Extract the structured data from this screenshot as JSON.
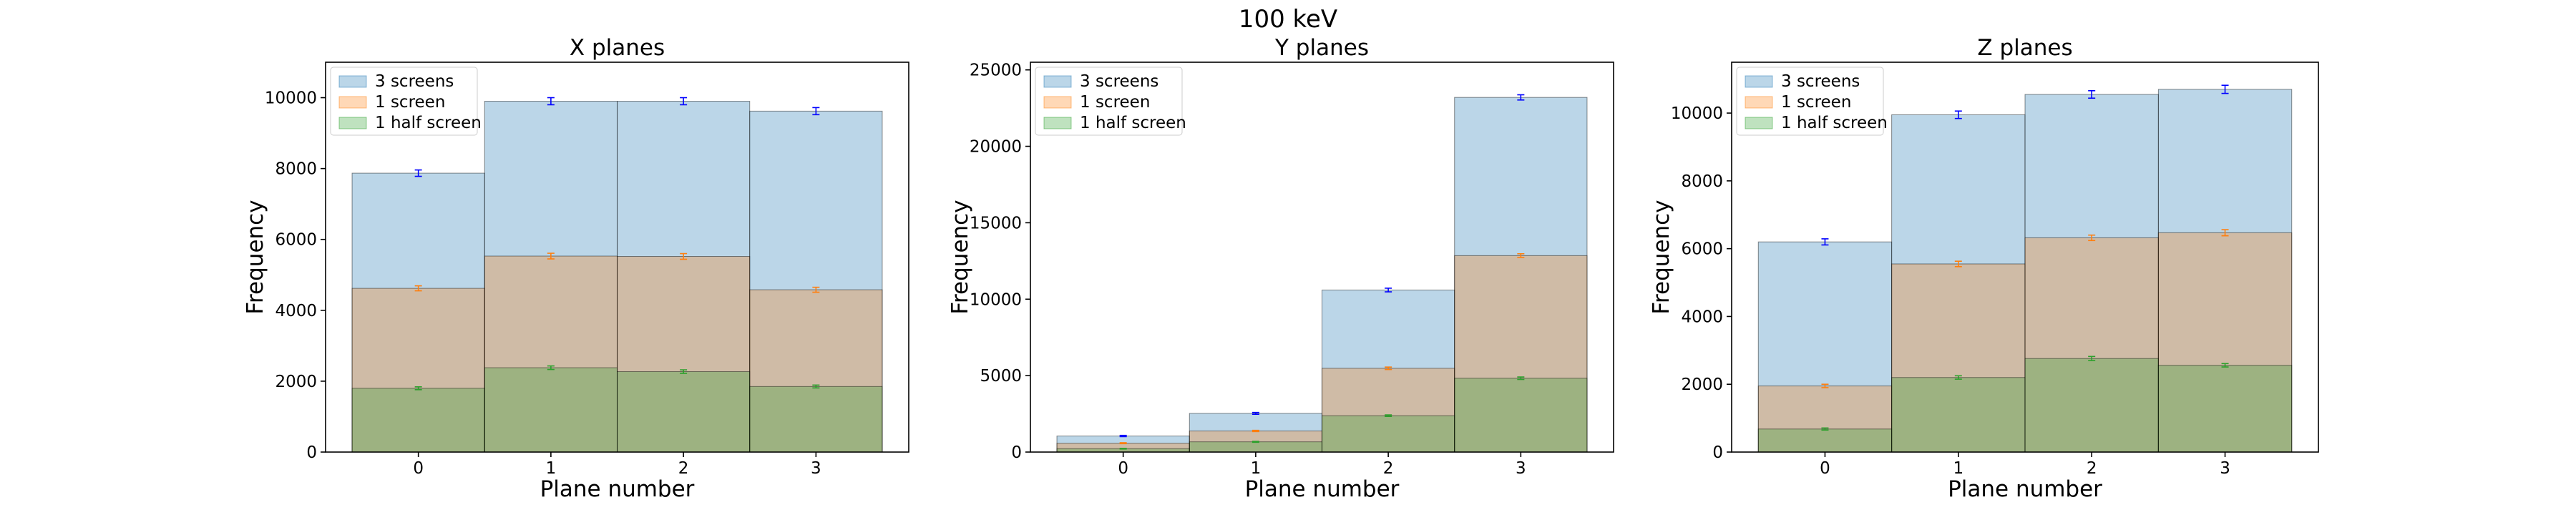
{
  "figure": {
    "suptitle": "100 keV",
    "colors": {
      "3 screens": "#1f77b4",
      "1 screen": "#ff7f0e",
      "1 half screen": "#2ca02c"
    }
  },
  "chart_data": [
    {
      "type": "bar",
      "title": "X planes",
      "xlabel": "Plane number",
      "ylabel": "Frequency",
      "categories": [
        "0",
        "1",
        "2",
        "3"
      ],
      "xlim": [
        -0.7,
        3.7
      ],
      "ylim": [
        0,
        11000
      ],
      "yticks": [
        0,
        2000,
        4000,
        6000,
        8000,
        10000
      ],
      "legend_position": "top-left",
      "grid": false,
      "series": [
        {
          "name": "3 screens",
          "values": [
            7870,
            9900,
            9900,
            9620
          ],
          "errors": [
            90,
            100,
            100,
            100
          ]
        },
        {
          "name": "1 screen",
          "values": [
            4620,
            5530,
            5520,
            4580
          ],
          "errors": [
            70,
            80,
            80,
            70
          ]
        },
        {
          "name": "1 half screen",
          "values": [
            1800,
            2380,
            2270,
            1850
          ],
          "errors": [
            40,
            50,
            50,
            40
          ]
        }
      ]
    },
    {
      "type": "bar",
      "title": "Y planes",
      "xlabel": "Plane number",
      "ylabel": "Frequency",
      "categories": [
        "0",
        "1",
        "2",
        "3"
      ],
      "xlim": [
        -0.7,
        3.7
      ],
      "ylim": [
        0,
        25500
      ],
      "yticks": [
        0,
        5000,
        10000,
        15000,
        20000,
        25000
      ],
      "legend_position": "top-left",
      "grid": false,
      "series": [
        {
          "name": "3 screens",
          "values": [
            1050,
            2530,
            10600,
            23200
          ],
          "errors": [
            40,
            60,
            120,
            170
          ]
        },
        {
          "name": "1 screen",
          "values": [
            580,
            1380,
            5480,
            12850
          ],
          "errors": [
            30,
            40,
            80,
            120
          ]
        },
        {
          "name": "1 half screen",
          "values": [
            220,
            670,
            2380,
            4830
          ],
          "errors": [
            20,
            30,
            50,
            80
          ]
        }
      ]
    },
    {
      "type": "bar",
      "title": "Z planes",
      "xlabel": "Plane number",
      "ylabel": "Frequency",
      "categories": [
        "0",
        "1",
        "2",
        "3"
      ],
      "xlim": [
        -0.7,
        3.7
      ],
      "ylim": [
        0,
        11500
      ],
      "yticks": [
        0,
        2000,
        4000,
        6000,
        8000,
        10000
      ],
      "legend_position": "top-left",
      "grid": false,
      "series": [
        {
          "name": "3 screens",
          "values": [
            6200,
            9950,
            10550,
            10700
          ],
          "errors": [
            90,
            110,
            110,
            120
          ]
        },
        {
          "name": "1 screen",
          "values": [
            1950,
            5550,
            6320,
            6470
          ],
          "errors": [
            50,
            80,
            80,
            90
          ]
        },
        {
          "name": "1 half screen",
          "values": [
            680,
            2200,
            2760,
            2560
          ],
          "errors": [
            30,
            50,
            60,
            50
          ]
        }
      ]
    }
  ]
}
